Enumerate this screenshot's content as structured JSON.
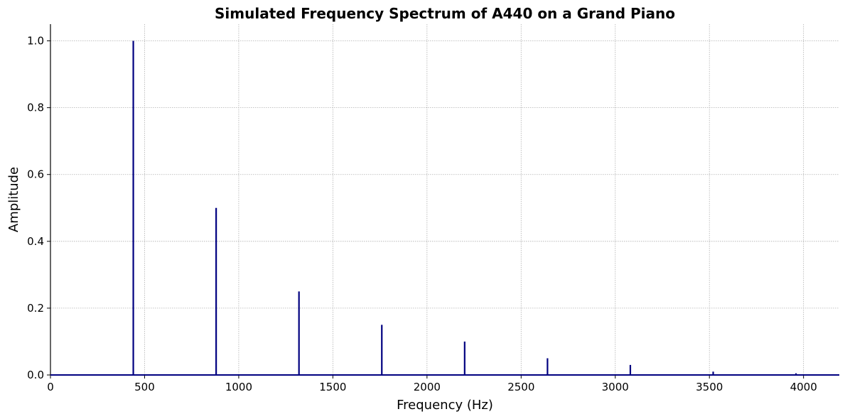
{
  "chart_data": {
    "type": "line",
    "title": "Simulated Frequency Spectrum of A440 on a Grand Piano",
    "xlabel": "Frequency (Hz)",
    "ylabel": "Amplitude",
    "xlim": [
      0,
      4190
    ],
    "ylim": [
      0,
      1.05
    ],
    "x_ticks": [
      0,
      500,
      1000,
      1500,
      2000,
      2500,
      3000,
      3500,
      4000
    ],
    "x_tick_labels": [
      "0",
      "500",
      "1000",
      "1500",
      "2000",
      "2500",
      "3000",
      "3500",
      "4000"
    ],
    "y_ticks": [
      0.0,
      0.2,
      0.4,
      0.6,
      0.8,
      1.0
    ],
    "y_tick_labels": [
      "0.0",
      "0.2",
      "0.4",
      "0.6",
      "0.8",
      "1.0"
    ],
    "grid": true,
    "line_color": "#000080",
    "series": [
      {
        "points": [
          {
            "x": 440,
            "y": 1.0
          },
          {
            "x": 880,
            "y": 0.5
          },
          {
            "x": 1320,
            "y": 0.25
          },
          {
            "x": 1760,
            "y": 0.15
          },
          {
            "x": 2200,
            "y": 0.1
          },
          {
            "x": 2640,
            "y": 0.05
          },
          {
            "x": 3080,
            "y": 0.03
          },
          {
            "x": 3520,
            "y": 0.01
          },
          {
            "x": 3960,
            "y": 0.005
          }
        ]
      }
    ]
  }
}
